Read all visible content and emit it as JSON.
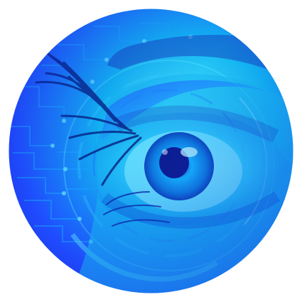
{
  "image": {
    "subject": "eye-with-circuit-overlay",
    "shape": "circle"
  },
  "palette": {
    "background": "#ffffff",
    "deep_blue": "#1c2fd1",
    "royal_blue": "#1f4bff",
    "cyan": "#11b8f2",
    "aqua": "#57e6ff",
    "iris": "#15b6ff",
    "pupil": "#0b1c8f",
    "circuit": "#1aa8ff",
    "lash": "#06207f"
  }
}
